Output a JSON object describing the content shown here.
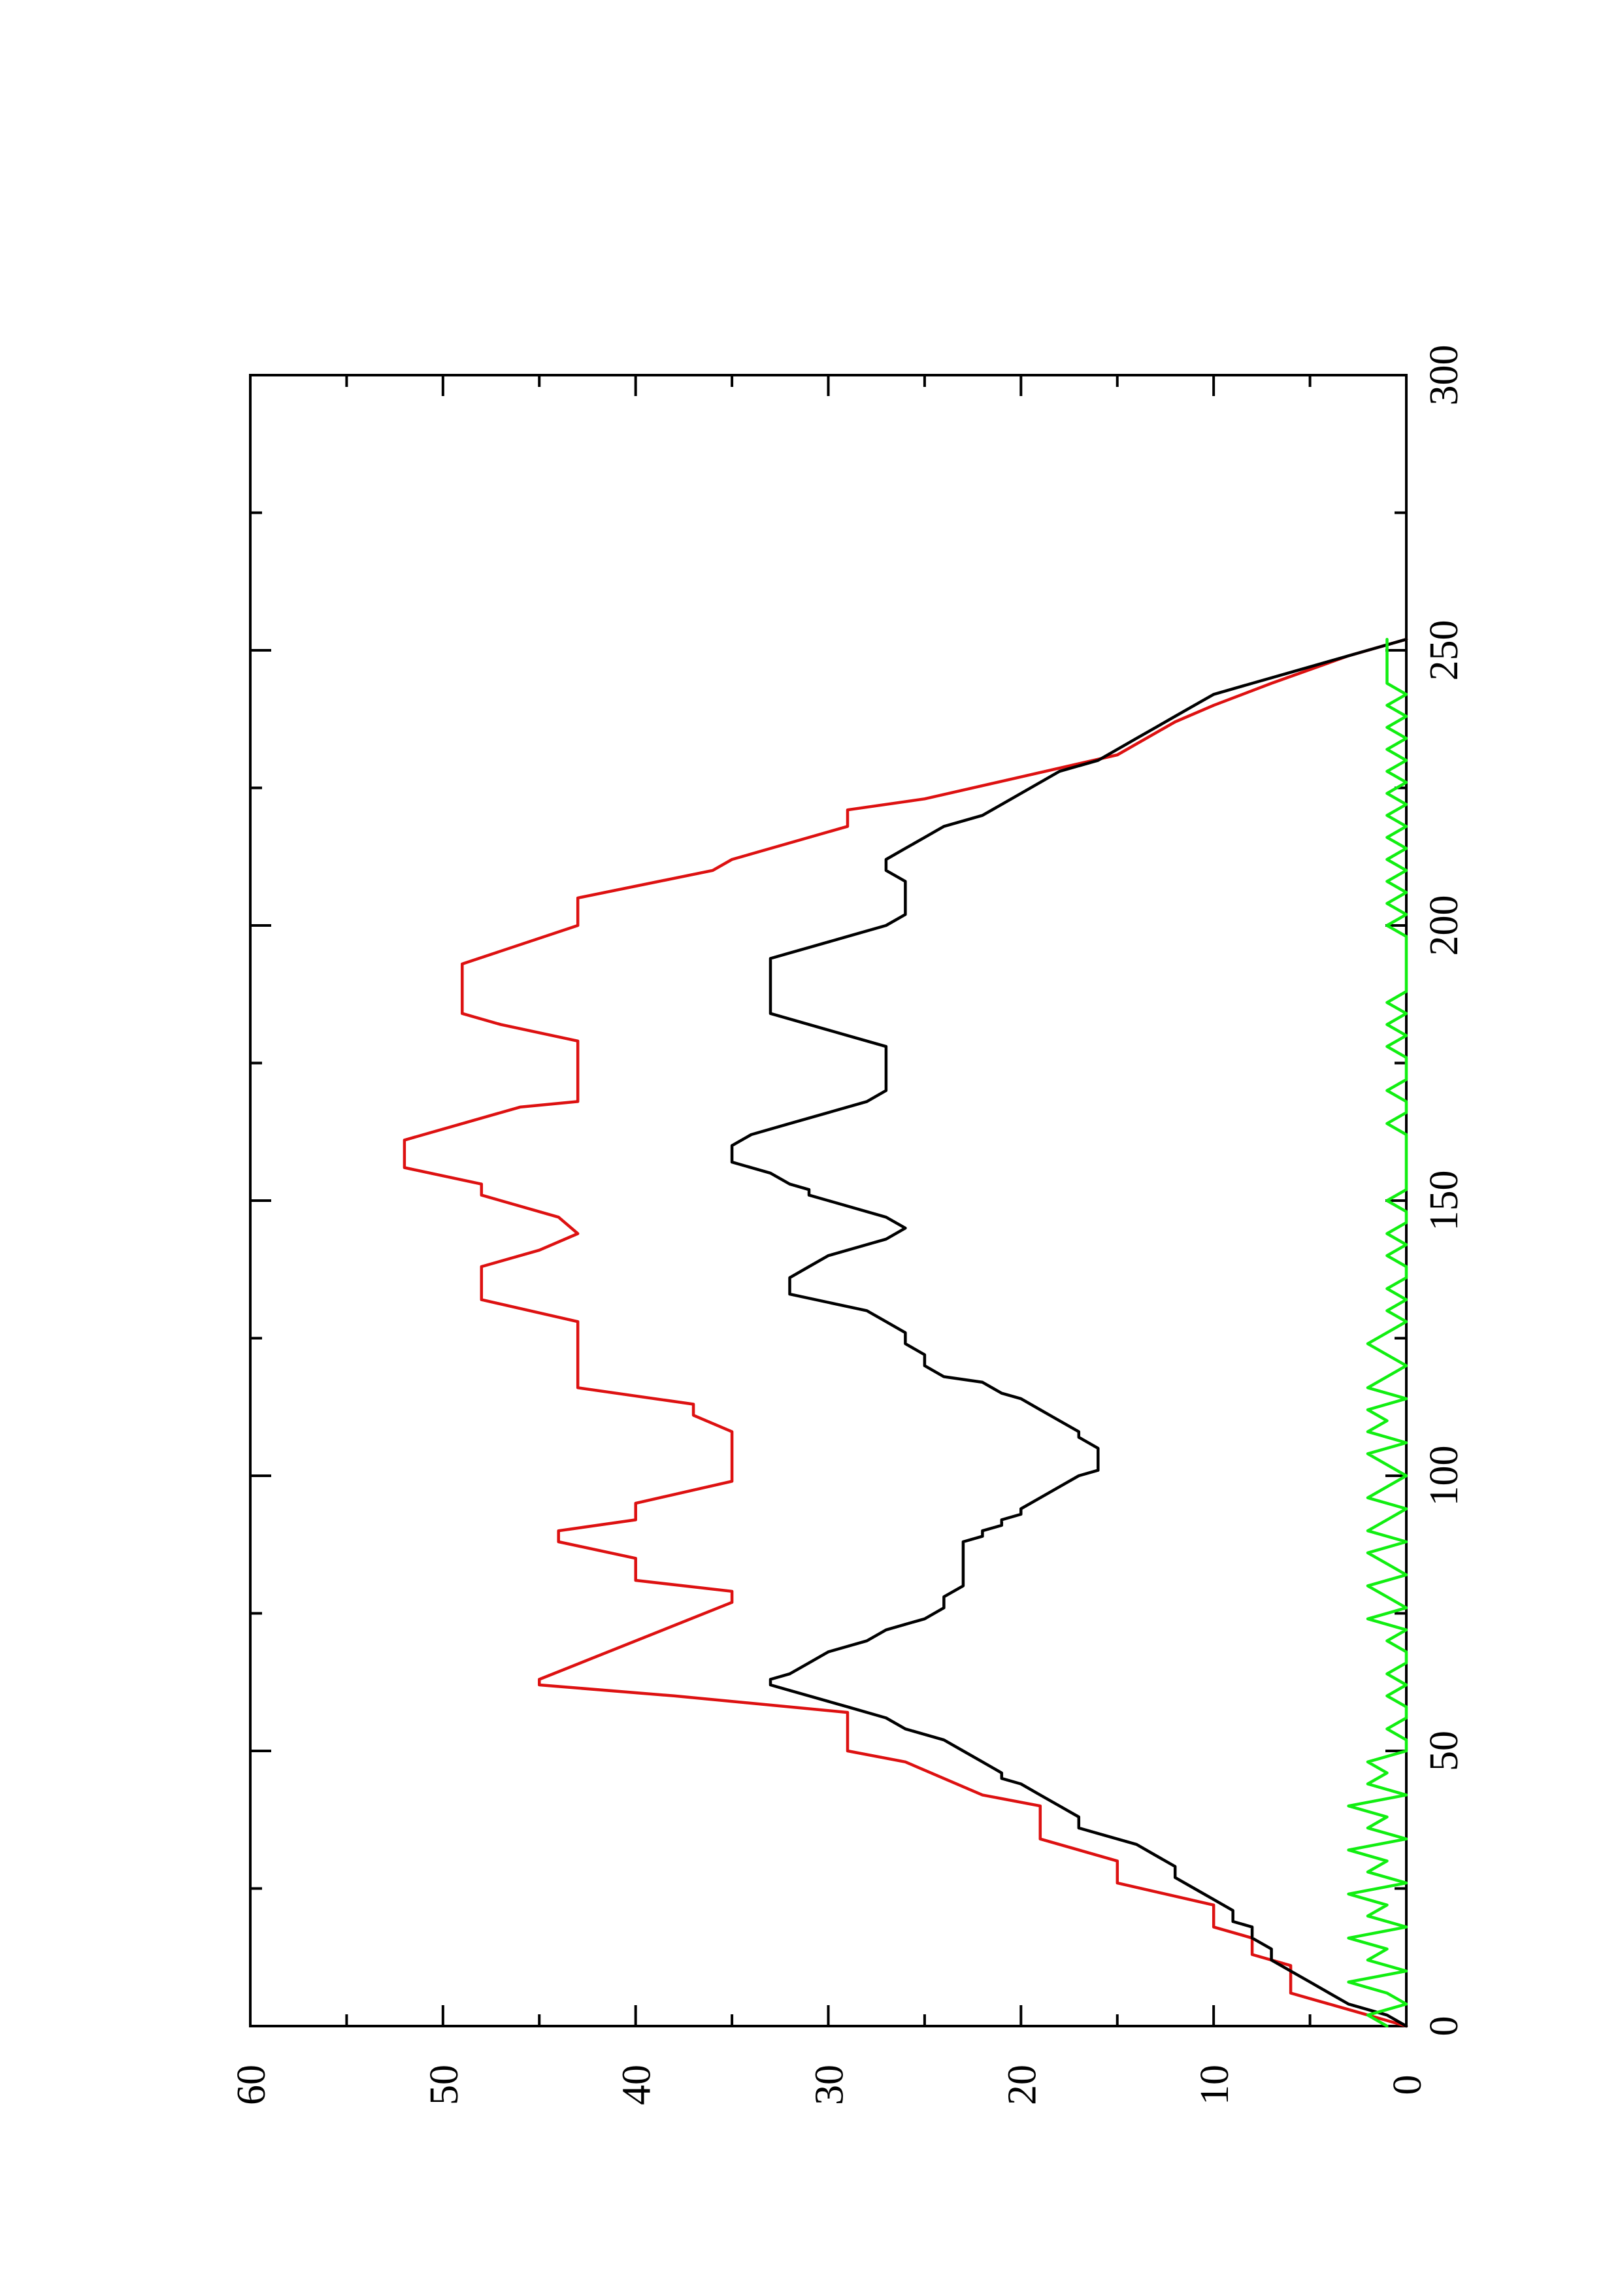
{
  "chart_data": {
    "type": "line",
    "orientation": "rotated-90-ccw",
    "title": "",
    "xlabel": "",
    "ylabel": "",
    "xlim": [
      0,
      300
    ],
    "ylim": [
      0,
      60
    ],
    "x_ticks": [
      "0",
      "50",
      "100",
      "150",
      "200",
      "250",
      "300"
    ],
    "y_ticks": [
      "0",
      "10",
      "20",
      "30",
      "40",
      "50",
      "60"
    ],
    "grid": false,
    "legend": "none",
    "series": [
      {
        "color": "#dd1111",
        "style": "step-line",
        "points": [
          [
            0,
            0
          ],
          [
            3,
            3
          ],
          [
            5,
            5
          ],
          [
            6,
            6
          ],
          [
            11,
            6
          ],
          [
            13,
            8
          ],
          [
            16,
            8
          ],
          [
            18,
            10
          ],
          [
            22,
            10
          ],
          [
            26,
            15
          ],
          [
            30,
            15
          ],
          [
            34,
            19
          ],
          [
            40,
            19
          ],
          [
            42,
            22
          ],
          [
            48,
            26
          ],
          [
            50,
            29
          ],
          [
            57,
            29
          ],
          [
            60,
            38
          ],
          [
            62,
            45
          ],
          [
            63,
            45
          ],
          [
            77,
            35
          ],
          [
            79,
            35
          ],
          [
            81,
            40
          ],
          [
            85,
            40
          ],
          [
            88,
            44
          ],
          [
            90,
            44
          ],
          [
            92,
            40
          ],
          [
            95,
            40
          ],
          [
            99,
            35
          ],
          [
            108,
            35
          ],
          [
            111,
            37
          ],
          [
            113,
            37
          ],
          [
            116,
            43
          ],
          [
            128,
            43
          ],
          [
            132,
            48
          ],
          [
            138,
            48
          ],
          [
            141,
            45
          ],
          [
            144,
            43
          ],
          [
            147,
            44
          ],
          [
            151,
            48
          ],
          [
            153,
            48
          ],
          [
            156,
            52
          ],
          [
            161,
            52
          ],
          [
            167,
            46
          ],
          [
            168,
            43
          ],
          [
            179,
            43
          ],
          [
            182,
            47
          ],
          [
            184,
            49
          ],
          [
            193,
            49
          ],
          [
            200,
            43
          ],
          [
            205,
            43
          ],
          [
            210,
            36
          ],
          [
            212,
            35
          ],
          [
            218,
            29
          ],
          [
            221,
            29
          ],
          [
            223,
            25
          ],
          [
            227,
            20
          ],
          [
            231,
            15
          ],
          [
            237,
            12
          ],
          [
            240,
            10
          ],
          [
            244,
            7
          ],
          [
            249,
            3
          ],
          [
            252,
            0
          ]
        ]
      },
      {
        "color": "#000000",
        "style": "line",
        "points": [
          [
            0,
            0
          ],
          [
            2,
            1
          ],
          [
            4,
            3
          ],
          [
            6,
            4
          ],
          [
            8,
            5
          ],
          [
            10,
            6
          ],
          [
            12,
            7
          ],
          [
            14,
            7
          ],
          [
            16,
            8
          ],
          [
            18,
            8
          ],
          [
            19,
            9
          ],
          [
            21,
            9
          ],
          [
            23,
            10
          ],
          [
            25,
            11
          ],
          [
            27,
            12
          ],
          [
            29,
            12
          ],
          [
            31,
            13
          ],
          [
            33,
            14
          ],
          [
            35,
            16
          ],
          [
            36,
            17
          ],
          [
            38,
            17
          ],
          [
            40,
            18
          ],
          [
            42,
            19
          ],
          [
            44,
            20
          ],
          [
            45,
            21
          ],
          [
            46,
            21
          ],
          [
            48,
            22
          ],
          [
            50,
            23
          ],
          [
            52,
            24
          ],
          [
            54,
            26
          ],
          [
            56,
            27
          ],
          [
            58,
            29
          ],
          [
            59,
            30
          ],
          [
            60,
            31
          ],
          [
            61,
            32
          ],
          [
            62,
            33
          ],
          [
            63,
            33
          ],
          [
            64,
            32
          ],
          [
            66,
            31
          ],
          [
            68,
            30
          ],
          [
            70,
            28
          ],
          [
            72,
            27
          ],
          [
            73,
            26
          ],
          [
            74,
            25
          ],
          [
            76,
            24
          ],
          [
            77,
            24
          ],
          [
            78,
            24
          ],
          [
            80,
            23
          ],
          [
            82,
            23
          ],
          [
            84,
            23
          ],
          [
            86,
            23
          ],
          [
            88,
            23
          ],
          [
            89,
            22
          ],
          [
            90,
            22
          ],
          [
            91,
            21
          ],
          [
            92,
            21
          ],
          [
            93,
            20
          ],
          [
            94,
            20
          ],
          [
            96,
            19
          ],
          [
            98,
            18
          ],
          [
            100,
            17
          ],
          [
            101,
            16
          ],
          [
            103,
            16
          ],
          [
            105,
            16
          ],
          [
            107,
            17
          ],
          [
            108,
            17
          ],
          [
            110,
            18
          ],
          [
            112,
            19
          ],
          [
            114,
            20
          ],
          [
            115,
            21
          ],
          [
            117,
            22
          ],
          [
            118,
            24
          ],
          [
            120,
            25
          ],
          [
            122,
            25
          ],
          [
            124,
            26
          ],
          [
            126,
            26
          ],
          [
            128,
            27
          ],
          [
            130,
            28
          ],
          [
            133,
            32
          ],
          [
            136,
            32
          ],
          [
            138,
            31
          ],
          [
            140,
            30
          ],
          [
            143,
            27
          ],
          [
            145,
            26
          ],
          [
            147,
            27
          ],
          [
            150,
            30
          ],
          [
            151,
            31
          ],
          [
            152,
            31
          ],
          [
            153,
            32
          ],
          [
            155,
            33
          ],
          [
            157,
            35
          ],
          [
            160,
            35
          ],
          [
            162,
            34
          ],
          [
            164,
            32
          ],
          [
            166,
            30
          ],
          [
            168,
            28
          ],
          [
            170,
            27
          ],
          [
            172,
            27
          ],
          [
            174,
            27
          ],
          [
            176,
            27
          ],
          [
            178,
            27
          ],
          [
            180,
            29
          ],
          [
            182,
            31
          ],
          [
            184,
            33
          ],
          [
            186,
            33
          ],
          [
            188,
            33
          ],
          [
            190,
            33
          ],
          [
            192,
            33
          ],
          [
            194,
            33
          ],
          [
            195,
            32
          ],
          [
            196,
            31
          ],
          [
            198,
            29
          ],
          [
            200,
            27
          ],
          [
            202,
            26
          ],
          [
            204,
            26
          ],
          [
            206,
            26
          ],
          [
            208,
            26
          ],
          [
            210,
            27
          ],
          [
            212,
            27
          ],
          [
            214,
            26
          ],
          [
            216,
            25
          ],
          [
            218,
            24
          ],
          [
            220,
            22
          ],
          [
            222,
            21
          ],
          [
            224,
            20
          ],
          [
            226,
            19
          ],
          [
            228,
            18
          ],
          [
            230,
            16
          ],
          [
            232,
            15
          ],
          [
            234,
            14
          ],
          [
            236,
            13
          ],
          [
            238,
            12
          ],
          [
            240,
            11
          ],
          [
            242,
            10
          ],
          [
            244,
            8
          ],
          [
            246,
            6
          ],
          [
            248,
            4
          ],
          [
            250,
            2
          ],
          [
            252,
            0
          ]
        ]
      },
      {
        "color": "#11ee11",
        "style": "noisy-line",
        "points": [
          [
            0,
            1
          ],
          [
            2,
            2
          ],
          [
            4,
            0
          ],
          [
            6,
            1
          ],
          [
            8,
            3
          ],
          [
            10,
            0
          ],
          [
            12,
            2
          ],
          [
            14,
            1
          ],
          [
            16,
            3
          ],
          [
            18,
            0
          ],
          [
            20,
            2
          ],
          [
            22,
            1
          ],
          [
            24,
            3
          ],
          [
            26,
            0
          ],
          [
            28,
            2
          ],
          [
            30,
            1
          ],
          [
            32,
            3
          ],
          [
            34,
            0
          ],
          [
            36,
            2
          ],
          [
            38,
            1
          ],
          [
            40,
            3
          ],
          [
            42,
            0
          ],
          [
            44,
            2
          ],
          [
            46,
            1
          ],
          [
            48,
            2
          ],
          [
            50,
            0
          ],
          [
            52,
            0
          ],
          [
            54,
            1
          ],
          [
            56,
            0
          ],
          [
            58,
            0
          ],
          [
            60,
            1
          ],
          [
            62,
            0
          ],
          [
            64,
            1
          ],
          [
            66,
            0
          ],
          [
            68,
            0
          ],
          [
            70,
            1
          ],
          [
            72,
            0
          ],
          [
            74,
            2
          ],
          [
            76,
            0
          ],
          [
            78,
            1
          ],
          [
            80,
            2
          ],
          [
            82,
            0
          ],
          [
            84,
            1
          ],
          [
            86,
            2
          ],
          [
            88,
            0
          ],
          [
            90,
            2
          ],
          [
            92,
            1
          ],
          [
            94,
            0
          ],
          [
            96,
            2
          ],
          [
            98,
            1
          ],
          [
            100,
            0
          ],
          [
            102,
            1
          ],
          [
            104,
            2
          ],
          [
            106,
            0
          ],
          [
            108,
            2
          ],
          [
            110,
            1
          ],
          [
            112,
            2
          ],
          [
            114,
            0
          ],
          [
            116,
            2
          ],
          [
            118,
            1
          ],
          [
            120,
            0
          ],
          [
            122,
            1
          ],
          [
            124,
            2
          ],
          [
            126,
            1
          ],
          [
            128,
            0
          ],
          [
            130,
            1
          ],
          [
            132,
            0
          ],
          [
            134,
            1
          ],
          [
            136,
            0
          ],
          [
            138,
            0
          ],
          [
            140,
            1
          ],
          [
            142,
            0
          ],
          [
            144,
            1
          ],
          [
            146,
            0
          ],
          [
            148,
            0
          ],
          [
            150,
            1
          ],
          [
            152,
            0
          ],
          [
            154,
            0
          ],
          [
            156,
            0
          ],
          [
            158,
            0
          ],
          [
            160,
            0
          ],
          [
            162,
            0
          ],
          [
            164,
            1
          ],
          [
            166,
            0
          ],
          [
            168,
            0
          ],
          [
            170,
            1
          ],
          [
            172,
            0
          ],
          [
            174,
            0
          ],
          [
            176,
            0
          ],
          [
            178,
            1
          ],
          [
            180,
            0
          ],
          [
            182,
            1
          ],
          [
            184,
            0
          ],
          [
            186,
            1
          ],
          [
            188,
            0
          ],
          [
            190,
            0
          ],
          [
            192,
            0
          ],
          [
            194,
            0
          ],
          [
            196,
            0
          ],
          [
            198,
            0
          ],
          [
            200,
            1
          ],
          [
            202,
            0
          ],
          [
            204,
            1
          ],
          [
            206,
            0
          ],
          [
            208,
            1
          ],
          [
            210,
            0
          ],
          [
            212,
            1
          ],
          [
            214,
            0
          ],
          [
            216,
            1
          ],
          [
            218,
            0
          ],
          [
            220,
            1
          ],
          [
            222,
            0
          ],
          [
            224,
            1
          ],
          [
            226,
            0
          ],
          [
            228,
            1
          ],
          [
            230,
            0
          ],
          [
            232,
            1
          ],
          [
            234,
            0
          ],
          [
            236,
            1
          ],
          [
            238,
            0
          ],
          [
            240,
            1
          ],
          [
            242,
            0
          ],
          [
            244,
            1
          ],
          [
            246,
            1
          ],
          [
            248,
            1
          ],
          [
            250,
            1
          ],
          [
            252,
            1
          ]
        ]
      }
    ]
  }
}
